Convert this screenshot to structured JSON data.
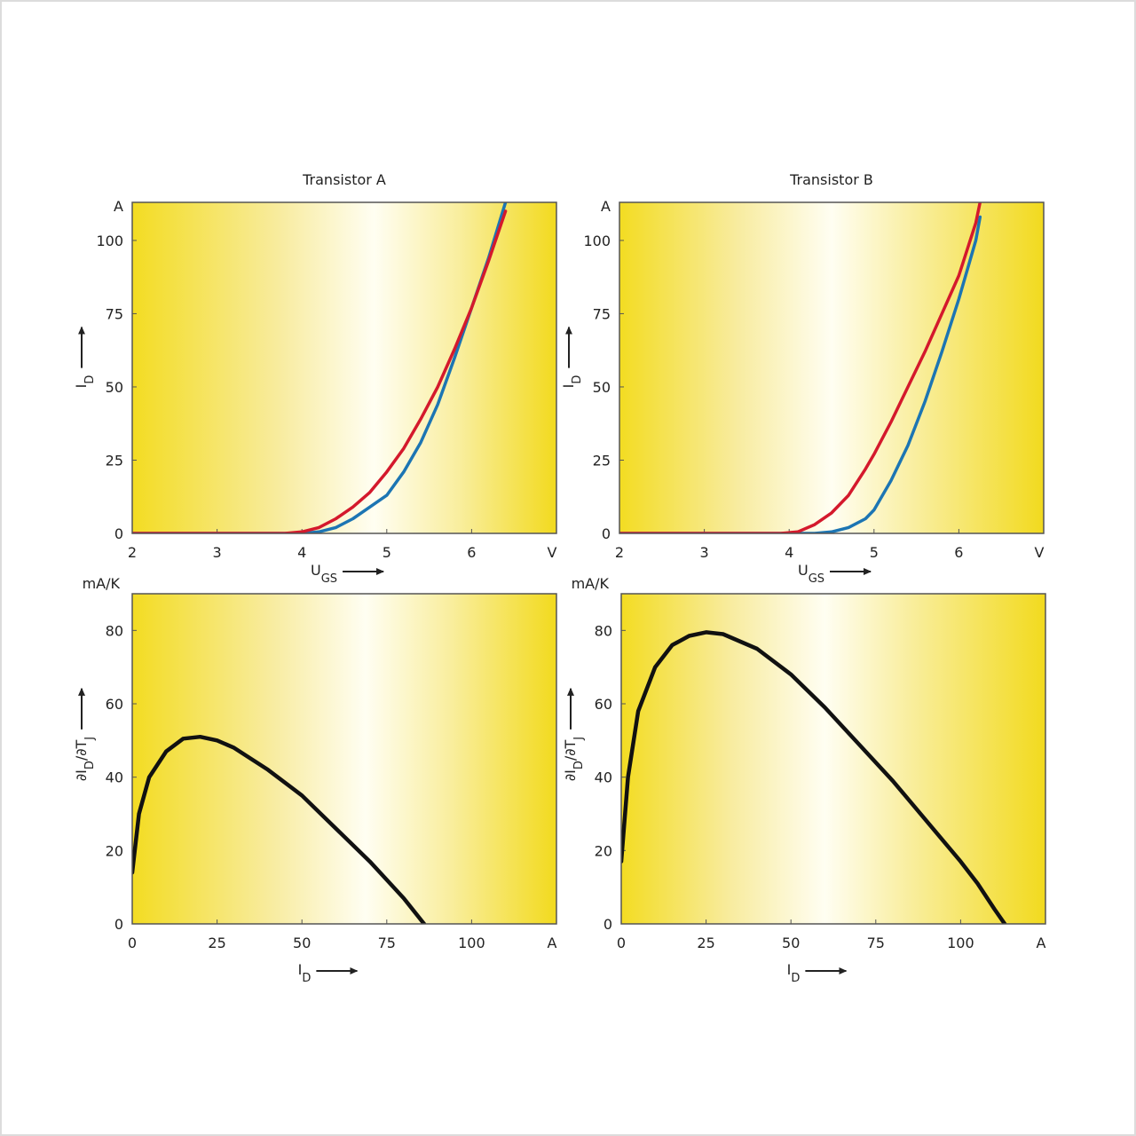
{
  "chart_data": [
    {
      "type": "line",
      "title": "Transistor A",
      "xlabel": [
        "U",
        "GS"
      ],
      "ylabel": [
        "I",
        "D"
      ],
      "xunit": "V",
      "yunit": "A",
      "x": [
        2,
        3,
        3.8,
        4.0,
        4.2,
        4.4,
        4.6,
        4.8,
        5.0,
        5.2,
        5.4,
        5.6,
        5.8,
        6.0,
        6.2,
        6.4
      ],
      "series": [
        {
          "name": "blue",
          "color": "#1c75b3",
          "values": [
            0,
            0,
            0,
            0,
            0.5,
            2,
            5,
            9,
            13,
            21,
            31,
            44,
            60,
            77,
            94,
            113
          ]
        },
        {
          "name": "red",
          "color": "#d4192c",
          "values": [
            0,
            0,
            0,
            0.5,
            2,
            5,
            9,
            14,
            21,
            29,
            39,
            50,
            63,
            77,
            93,
            110
          ]
        }
      ],
      "xlim": [
        2,
        7
      ],
      "ylim": [
        0,
        113
      ],
      "xticks": [
        2,
        3,
        4,
        5,
        6
      ],
      "yticks": [
        0,
        25,
        50,
        75,
        100
      ]
    },
    {
      "type": "line",
      "title": "Transistor B",
      "xlabel": [
        "U",
        "GS"
      ],
      "ylabel": [
        "I",
        "D"
      ],
      "xunit": "V",
      "yunit": "A",
      "x": [
        2,
        3,
        3.9,
        4.1,
        4.3,
        4.5,
        4.7,
        4.9,
        5.0,
        5.2,
        5.4,
        5.6,
        5.8,
        6.0,
        6.2,
        6.25
      ],
      "series": [
        {
          "name": "blue",
          "color": "#1c75b3",
          "values": [
            0,
            0,
            0,
            0,
            0,
            0.5,
            2,
            5,
            8,
            18,
            30,
            45,
            62,
            80,
            100,
            108
          ]
        },
        {
          "name": "red",
          "color": "#d4192c",
          "values": [
            0,
            0,
            0,
            0.5,
            3,
            7,
            13,
            22,
            27,
            38,
            50,
            62,
            75,
            88,
            106,
            113
          ]
        }
      ],
      "xlim": [
        2,
        7
      ],
      "ylim": [
        0,
        113
      ],
      "xticks": [
        2,
        3,
        4,
        5,
        6
      ],
      "yticks": [
        0,
        25,
        50,
        75,
        100
      ]
    },
    {
      "type": "line",
      "xlabel": [
        "I",
        "D"
      ],
      "ylabel": [
        "∂I",
        "D",
        "/∂T",
        "J"
      ],
      "xunit": "A",
      "yunit": "mA/K",
      "x": [
        0,
        2,
        5,
        10,
        15,
        20,
        25,
        30,
        40,
        50,
        60,
        70,
        75,
        80,
        86
      ],
      "series": [
        {
          "name": "fit",
          "color": "#111111",
          "values": [
            14,
            30,
            40,
            47,
            50.5,
            51,
            50,
            48,
            42,
            35,
            26,
            17,
            12,
            7,
            0
          ]
        }
      ],
      "xlim": [
        0,
        125
      ],
      "ylim": [
        0,
        90
      ],
      "xticks": [
        0,
        25,
        50,
        75,
        100
      ],
      "yticks": [
        0,
        20,
        40,
        60,
        80
      ]
    },
    {
      "type": "line",
      "xlabel": [
        "I",
        "D"
      ],
      "ylabel": [
        "∂I",
        "D",
        "/∂T",
        "J"
      ],
      "xunit": "A",
      "yunit": "mA/K",
      "x": [
        0,
        2,
        5,
        10,
        15,
        20,
        25,
        30,
        40,
        50,
        60,
        70,
        80,
        90,
        100,
        105,
        110,
        113
      ],
      "series": [
        {
          "name": "fit",
          "color": "#111111",
          "values": [
            17,
            40,
            58,
            70,
            76,
            78.5,
            79.5,
            79,
            75,
            68,
            59,
            49,
            39,
            28,
            17,
            11,
            4,
            0
          ]
        }
      ],
      "xlim": [
        0,
        125
      ],
      "ylim": [
        0,
        90
      ],
      "xticks": [
        0,
        25,
        50,
        75,
        100
      ],
      "yticks": [
        0,
        20,
        40,
        60,
        80
      ]
    }
  ]
}
